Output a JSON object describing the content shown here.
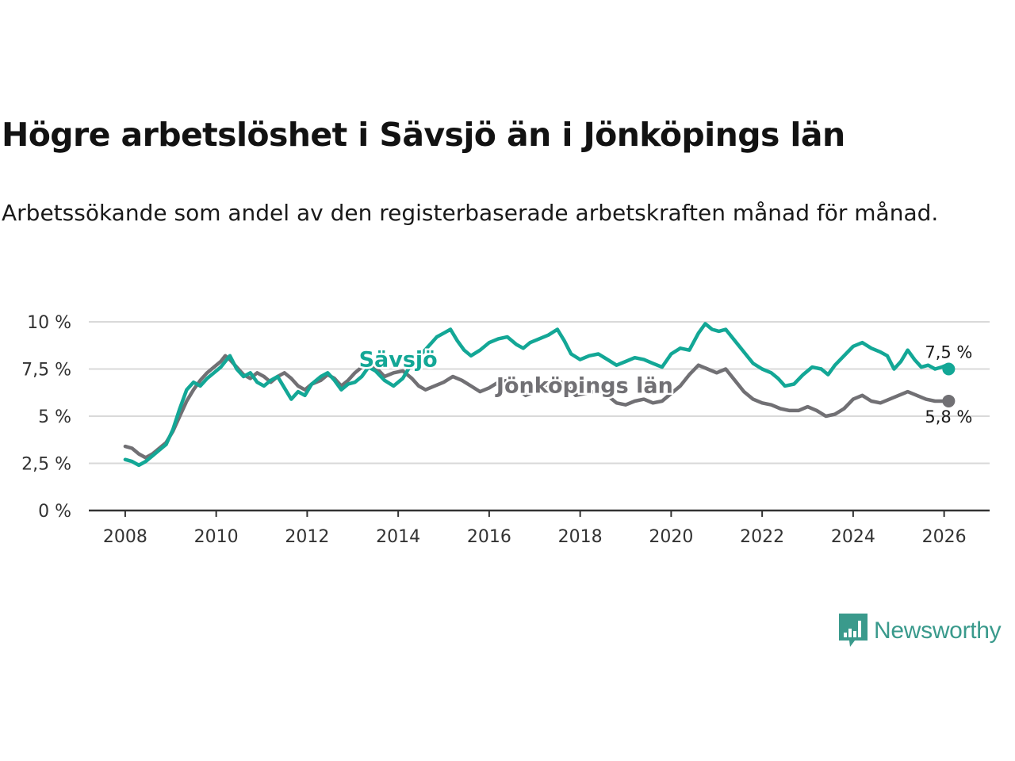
{
  "header": {
    "title": "Högre arbetslöshet i Sävsjö än i Jönköpings län",
    "subtitle": "Arbetssökande som andel av den registerbaserade arbetskraften månad för månad."
  },
  "logo": {
    "text": "Newsworthy",
    "icon": "newsworthy-chart-icon",
    "color": "#3a9a8c"
  },
  "chart_data": {
    "type": "line",
    "title": "Högre arbetslöshet i Sävsjö än i Jönköpings län",
    "xlabel": "",
    "ylabel": "",
    "xlim": [
      2007.2,
      2027.0
    ],
    "ylim": [
      0,
      10
    ],
    "grid": true,
    "x_ticks": [
      2008,
      2010,
      2012,
      2014,
      2016,
      2018,
      2020,
      2022,
      2024,
      2026
    ],
    "x_tick_labels": [
      "2008",
      "2010",
      "2012",
      "2014",
      "2016",
      "2018",
      "2020",
      "2022",
      "2024",
      "2026"
    ],
    "y_ticks": [
      0,
      2.5,
      5,
      7.5,
      10
    ],
    "y_tick_labels": [
      "0 %",
      "2,5 %",
      "5 %",
      "7,5 %",
      "10 %"
    ],
    "series": [
      {
        "name": "Jönköpings län",
        "color": "#717074",
        "end_label": "5,8 %",
        "points": [
          [
            2008.0,
            3.4
          ],
          [
            2008.15,
            3.3
          ],
          [
            2008.3,
            3.0
          ],
          [
            2008.45,
            2.8
          ],
          [
            2008.6,
            3.0
          ],
          [
            2008.75,
            3.3
          ],
          [
            2008.9,
            3.6
          ],
          [
            2009.05,
            4.2
          ],
          [
            2009.2,
            5.0
          ],
          [
            2009.35,
            5.8
          ],
          [
            2009.5,
            6.4
          ],
          [
            2009.65,
            6.9
          ],
          [
            2009.8,
            7.3
          ],
          [
            2009.95,
            7.6
          ],
          [
            2010.1,
            7.9
          ],
          [
            2010.2,
            8.2
          ],
          [
            2010.3,
            8.0
          ],
          [
            2010.45,
            7.6
          ],
          [
            2010.6,
            7.2
          ],
          [
            2010.75,
            7.0
          ],
          [
            2010.9,
            7.3
          ],
          [
            2011.05,
            7.1
          ],
          [
            2011.2,
            6.8
          ],
          [
            2011.35,
            7.1
          ],
          [
            2011.5,
            7.3
          ],
          [
            2011.65,
            7.0
          ],
          [
            2011.8,
            6.6
          ],
          [
            2011.95,
            6.4
          ],
          [
            2012.1,
            6.7
          ],
          [
            2012.3,
            6.9
          ],
          [
            2012.45,
            7.2
          ],
          [
            2012.6,
            7.0
          ],
          [
            2012.75,
            6.6
          ],
          [
            2012.9,
            6.9
          ],
          [
            2013.05,
            7.3
          ],
          [
            2013.2,
            7.6
          ],
          [
            2013.35,
            7.9
          ],
          [
            2013.5,
            7.6
          ],
          [
            2013.7,
            7.1
          ],
          [
            2013.9,
            7.3
          ],
          [
            2014.1,
            7.4
          ],
          [
            2014.3,
            7.0
          ],
          [
            2014.45,
            6.6
          ],
          [
            2014.6,
            6.4
          ],
          [
            2014.8,
            6.6
          ],
          [
            2015.0,
            6.8
          ],
          [
            2015.2,
            7.1
          ],
          [
            2015.4,
            6.9
          ],
          [
            2015.6,
            6.6
          ],
          [
            2015.8,
            6.3
          ],
          [
            2016.0,
            6.5
          ],
          [
            2016.2,
            6.8
          ],
          [
            2016.4,
            6.9
          ],
          [
            2016.6,
            6.5
          ],
          [
            2016.8,
            6.1
          ],
          [
            2017.0,
            6.3
          ],
          [
            2017.2,
            6.6
          ],
          [
            2017.4,
            6.8
          ],
          [
            2017.6,
            6.8
          ],
          [
            2017.75,
            6.5
          ],
          [
            2017.9,
            6.1
          ],
          [
            2018.1,
            6.2
          ],
          [
            2018.3,
            6.3
          ],
          [
            2018.5,
            6.3
          ],
          [
            2018.65,
            6.0
          ],
          [
            2018.8,
            5.7
          ],
          [
            2019.0,
            5.6
          ],
          [
            2019.2,
            5.8
          ],
          [
            2019.4,
            5.9
          ],
          [
            2019.6,
            5.7
          ],
          [
            2019.8,
            5.8
          ],
          [
            2020.0,
            6.2
          ],
          [
            2020.2,
            6.6
          ],
          [
            2020.4,
            7.2
          ],
          [
            2020.6,
            7.7
          ],
          [
            2020.8,
            7.5
          ],
          [
            2021.0,
            7.3
          ],
          [
            2021.2,
            7.5
          ],
          [
            2021.4,
            6.9
          ],
          [
            2021.6,
            6.3
          ],
          [
            2021.8,
            5.9
          ],
          [
            2022.0,
            5.7
          ],
          [
            2022.2,
            5.6
          ],
          [
            2022.4,
            5.4
          ],
          [
            2022.6,
            5.3
          ],
          [
            2022.8,
            5.3
          ],
          [
            2023.0,
            5.5
          ],
          [
            2023.2,
            5.3
          ],
          [
            2023.4,
            5.0
          ],
          [
            2023.6,
            5.1
          ],
          [
            2023.8,
            5.4
          ],
          [
            2024.0,
            5.9
          ],
          [
            2024.2,
            6.1
          ],
          [
            2024.4,
            5.8
          ],
          [
            2024.6,
            5.7
          ],
          [
            2024.8,
            5.9
          ],
          [
            2025.0,
            6.1
          ],
          [
            2025.2,
            6.3
          ],
          [
            2025.4,
            6.1
          ],
          [
            2025.6,
            5.9
          ],
          [
            2025.8,
            5.8
          ],
          [
            2026.0,
            5.8
          ],
          [
            2026.1,
            5.8
          ]
        ]
      },
      {
        "name": "Sävsjö",
        "color": "#13a796",
        "end_label": "7,5 %",
        "points": [
          [
            2008.0,
            2.7
          ],
          [
            2008.15,
            2.6
          ],
          [
            2008.3,
            2.4
          ],
          [
            2008.45,
            2.6
          ],
          [
            2008.6,
            2.9
          ],
          [
            2008.75,
            3.2
          ],
          [
            2008.9,
            3.5
          ],
          [
            2009.05,
            4.3
          ],
          [
            2009.2,
            5.4
          ],
          [
            2009.35,
            6.4
          ],
          [
            2009.5,
            6.8
          ],
          [
            2009.65,
            6.6
          ],
          [
            2009.8,
            7.0
          ],
          [
            2009.95,
            7.3
          ],
          [
            2010.1,
            7.6
          ],
          [
            2010.2,
            7.9
          ],
          [
            2010.3,
            8.2
          ],
          [
            2010.45,
            7.5
          ],
          [
            2010.6,
            7.1
          ],
          [
            2010.75,
            7.3
          ],
          [
            2010.9,
            6.8
          ],
          [
            2011.05,
            6.6
          ],
          [
            2011.2,
            6.9
          ],
          [
            2011.35,
            7.1
          ],
          [
            2011.5,
            6.5
          ],
          [
            2011.65,
            5.9
          ],
          [
            2011.8,
            6.3
          ],
          [
            2011.95,
            6.1
          ],
          [
            2012.1,
            6.7
          ],
          [
            2012.3,
            7.1
          ],
          [
            2012.45,
            7.3
          ],
          [
            2012.6,
            6.9
          ],
          [
            2012.75,
            6.4
          ],
          [
            2012.9,
            6.7
          ],
          [
            2013.05,
            6.8
          ],
          [
            2013.2,
            7.1
          ],
          [
            2013.35,
            7.6
          ],
          [
            2013.5,
            7.4
          ],
          [
            2013.7,
            6.9
          ],
          [
            2013.9,
            6.6
          ],
          [
            2014.1,
            7.0
          ],
          [
            2014.25,
            7.6
          ],
          [
            2014.4,
            8.1
          ],
          [
            2014.55,
            8.4
          ],
          [
            2014.7,
            8.8
          ],
          [
            2014.85,
            9.2
          ],
          [
            2015.0,
            9.4
          ],
          [
            2015.15,
            9.6
          ],
          [
            2015.3,
            9.0
          ],
          [
            2015.45,
            8.5
          ],
          [
            2015.6,
            8.2
          ],
          [
            2015.8,
            8.5
          ],
          [
            2016.0,
            8.9
          ],
          [
            2016.2,
            9.1
          ],
          [
            2016.4,
            9.2
          ],
          [
            2016.6,
            8.8
          ],
          [
            2016.75,
            8.6
          ],
          [
            2016.9,
            8.9
          ],
          [
            2017.1,
            9.1
          ],
          [
            2017.3,
            9.3
          ],
          [
            2017.5,
            9.6
          ],
          [
            2017.65,
            9.0
          ],
          [
            2017.8,
            8.3
          ],
          [
            2018.0,
            8.0
          ],
          [
            2018.2,
            8.2
          ],
          [
            2018.4,
            8.3
          ],
          [
            2018.6,
            8.0
          ],
          [
            2018.8,
            7.7
          ],
          [
            2019.0,
            7.9
          ],
          [
            2019.2,
            8.1
          ],
          [
            2019.4,
            8.0
          ],
          [
            2019.6,
            7.8
          ],
          [
            2019.8,
            7.6
          ],
          [
            2020.0,
            8.3
          ],
          [
            2020.2,
            8.6
          ],
          [
            2020.4,
            8.5
          ],
          [
            2020.6,
            9.4
          ],
          [
            2020.75,
            9.9
          ],
          [
            2020.9,
            9.6
          ],
          [
            2021.05,
            9.5
          ],
          [
            2021.2,
            9.6
          ],
          [
            2021.4,
            9.0
          ],
          [
            2021.6,
            8.4
          ],
          [
            2021.8,
            7.8
          ],
          [
            2022.0,
            7.5
          ],
          [
            2022.2,
            7.3
          ],
          [
            2022.35,
            7.0
          ],
          [
            2022.5,
            6.6
          ],
          [
            2022.7,
            6.7
          ],
          [
            2022.9,
            7.2
          ],
          [
            2023.1,
            7.6
          ],
          [
            2023.3,
            7.5
          ],
          [
            2023.45,
            7.2
          ],
          [
            2023.6,
            7.7
          ],
          [
            2023.8,
            8.2
          ],
          [
            2024.0,
            8.7
          ],
          [
            2024.2,
            8.9
          ],
          [
            2024.4,
            8.6
          ],
          [
            2024.6,
            8.4
          ],
          [
            2024.75,
            8.2
          ],
          [
            2024.9,
            7.5
          ],
          [
            2025.05,
            7.9
          ],
          [
            2025.2,
            8.5
          ],
          [
            2025.35,
            8.0
          ],
          [
            2025.5,
            7.6
          ],
          [
            2025.65,
            7.7
          ],
          [
            2025.8,
            7.5
          ],
          [
            2025.95,
            7.6
          ],
          [
            2026.05,
            7.7
          ],
          [
            2026.1,
            7.5
          ]
        ]
      }
    ],
    "annotations": [
      {
        "text": "Sävsjö",
        "series": "Sävsjö",
        "x": 2014.0,
        "y": 8.05
      },
      {
        "text": "Jönköpings län",
        "series": "Jönköpings län",
        "x": 2018.1,
        "y": 6.65
      }
    ]
  }
}
